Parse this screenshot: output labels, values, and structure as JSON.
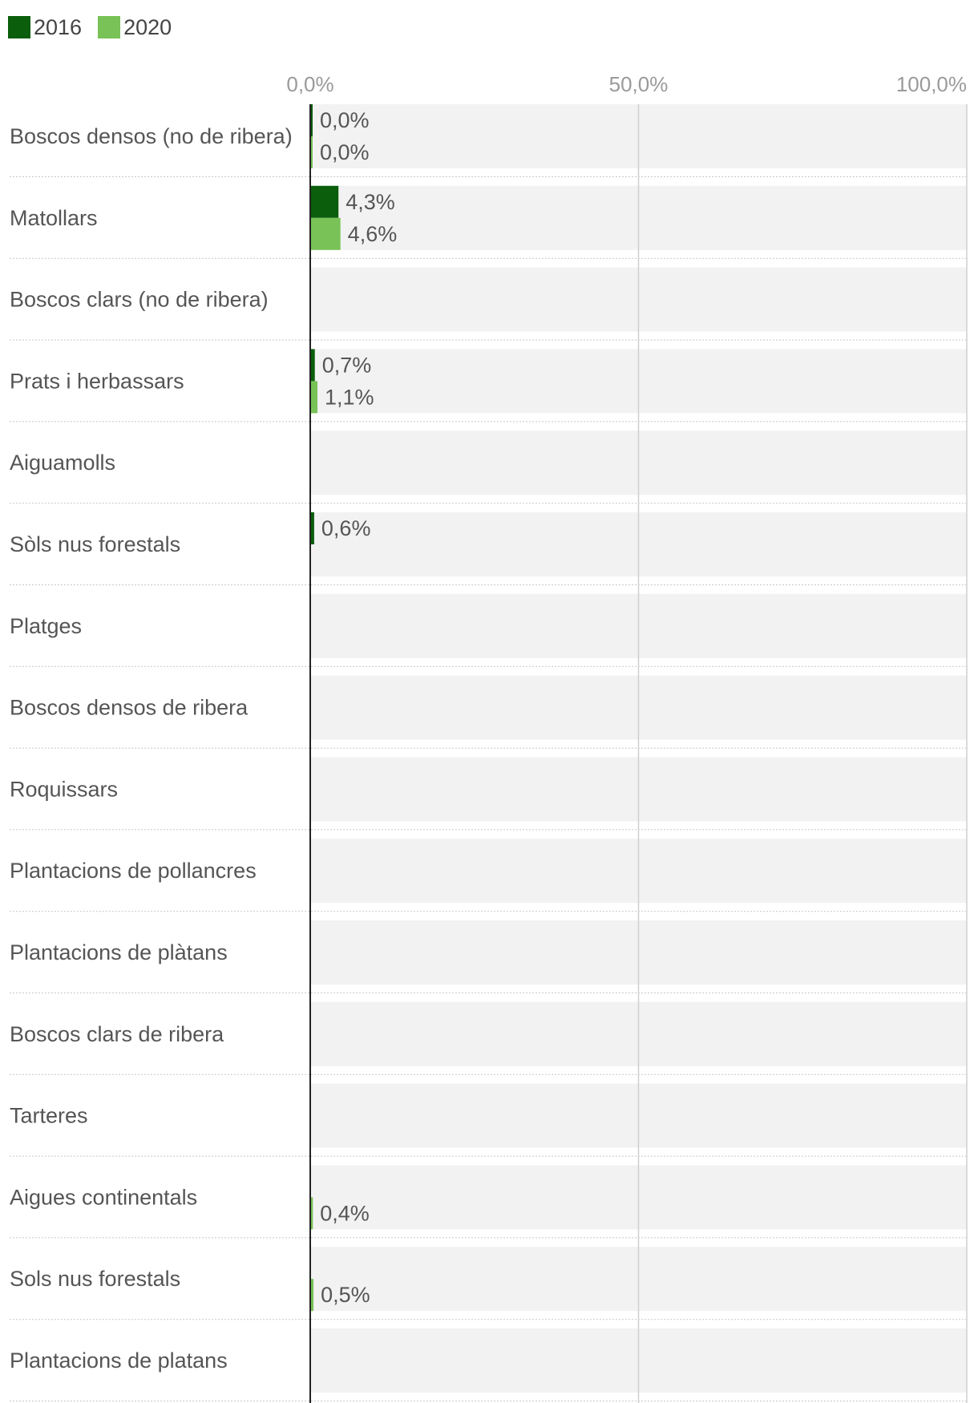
{
  "legend": [
    {
      "label": "2016",
      "color": "#0b5e0b"
    },
    {
      "label": "2020",
      "color": "#78c257"
    }
  ],
  "chart_data": {
    "type": "bar",
    "orientation": "horizontal",
    "xlim": [
      0,
      100
    ],
    "ticks": [
      {
        "value": 0,
        "label": "0,0%"
      },
      {
        "value": 50,
        "label": "50,0%"
      },
      {
        "value": 100,
        "label": "100,0%"
      }
    ],
    "categories": [
      "Boscos densos (no de ribera)",
      "Matollars",
      "Boscos clars (no de ribera)",
      "Prats i herbassars",
      "Aiguamolls",
      "Sòls nus forestals",
      "Platges",
      "Boscos densos de ribera",
      "Roquissars",
      "Plantacions de pollancres",
      "Plantacions de plàtans",
      "Boscos clars de ribera",
      "Tarteres",
      "Aigues continentals",
      "Sols nus forestals",
      "Plantacions de platans"
    ],
    "series": [
      {
        "name": "2016",
        "color": "#0b5e0b",
        "values": [
          0.0,
          4.3,
          null,
          0.7,
          null,
          0.6,
          null,
          null,
          null,
          null,
          null,
          null,
          null,
          null,
          null,
          null
        ],
        "labels": [
          "0,0%",
          "4,3%",
          null,
          "0,7%",
          null,
          "0,6%",
          null,
          null,
          null,
          null,
          null,
          null,
          null,
          null,
          null,
          null
        ]
      },
      {
        "name": "2020",
        "color": "#78c257",
        "values": [
          0.0,
          4.6,
          null,
          1.1,
          null,
          null,
          null,
          null,
          null,
          null,
          null,
          null,
          null,
          0.4,
          0.5,
          null
        ],
        "labels": [
          "0,0%",
          "4,6%",
          null,
          "1,1%",
          null,
          null,
          null,
          null,
          null,
          null,
          null,
          null,
          null,
          "0,4%",
          "0,5%",
          null
        ]
      }
    ]
  }
}
